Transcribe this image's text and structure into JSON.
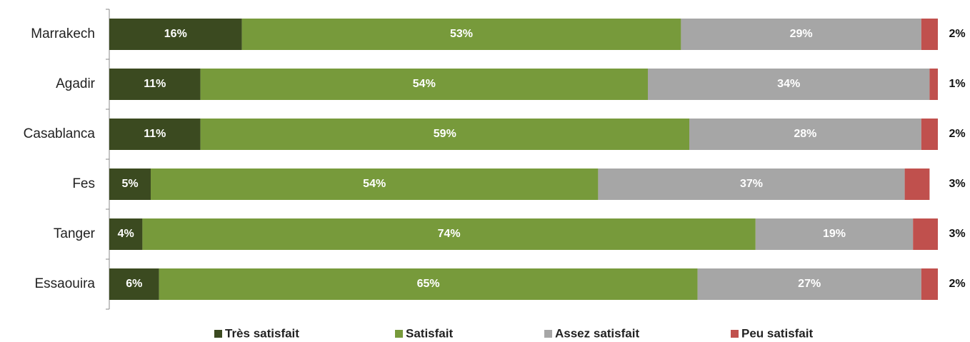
{
  "chart_data": {
    "type": "bar",
    "orientation": "horizontal",
    "stacked": true,
    "categories": [
      "Marrakech",
      "Agadir",
      "Casablanca",
      "Fes",
      "Tanger",
      "Essaouira"
    ],
    "series": [
      {
        "name": "Très satisfait",
        "color": "#3b4a20",
        "values": [
          16,
          11,
          11,
          5,
          4,
          6
        ],
        "value_labels": [
          "16%",
          "11%",
          "11%",
          "5%",
          "4%",
          "6%"
        ]
      },
      {
        "name": "Satisfait",
        "color": "#779a3b",
        "values": [
          53,
          54,
          59,
          54,
          74,
          65
        ],
        "value_labels": [
          "53%",
          "54%",
          "59%",
          "54%",
          "74%",
          "65%"
        ]
      },
      {
        "name": "Assez satisfait",
        "color": "#a6a6a6",
        "values": [
          29,
          34,
          28,
          37,
          19,
          27
        ],
        "value_labels": [
          "29%",
          "34%",
          "28%",
          "37%",
          "19%",
          "27%"
        ]
      },
      {
        "name": "Peu satisfait",
        "color": "#c0504d",
        "values": [
          2,
          1,
          2,
          3,
          3,
          2
        ],
        "value_labels": [
          "2%",
          "1%",
          "2%",
          "3%",
          "3%",
          "2%"
        ]
      }
    ],
    "legend": "bottom"
  }
}
